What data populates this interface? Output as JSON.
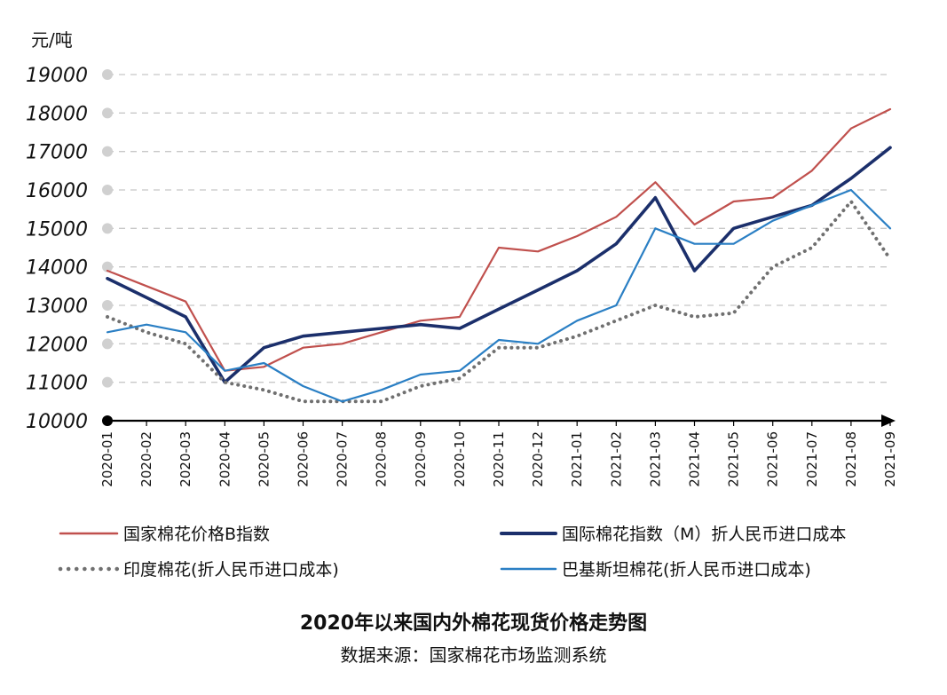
{
  "chart_data": {
    "type": "line",
    "title": "2020年以来国内外棉花现货价格走势图",
    "subtitle": "数据来源：国家棉花市场监测系统",
    "ylabel": "元/吨",
    "xlabel": "",
    "ylim": [
      10000,
      19000
    ],
    "yticks": [
      "10000",
      "11000",
      "12000",
      "13000",
      "14000",
      "15000",
      "16000",
      "17000",
      "18000",
      "19000"
    ],
    "categories": [
      "2020-01",
      "2020-02",
      "2020-03",
      "2020-04",
      "2020-05",
      "2020-06",
      "2020-07",
      "2020-08",
      "2020-09",
      "2020-10",
      "2020-11",
      "2020-12",
      "2021-01",
      "2021-02",
      "2021-03",
      "2021-04",
      "2021-05",
      "2021-06",
      "2021-07",
      "2021-08",
      "2021-09"
    ],
    "grid": "horizontal dashed",
    "legend_position": "bottom",
    "series": [
      {
        "name": "国家棉花价格B指数",
        "color": "#c0504d",
        "style": "solid",
        "values": [
          13900,
          13500,
          13100,
          11300,
          11400,
          11900,
          12000,
          12300,
          12600,
          12700,
          14500,
          14400,
          14800,
          15300,
          16200,
          15100,
          15700,
          15800,
          16500,
          17600,
          18100
        ]
      },
      {
        "name": "国际棉花指数（M）折人民币进口成本",
        "color": "#1b2f6b",
        "style": "thick",
        "values": [
          13700,
          13200,
          12700,
          11000,
          11900,
          12200,
          12300,
          12400,
          12500,
          12400,
          12900,
          13400,
          13900,
          14600,
          15800,
          13900,
          15000,
          15300,
          15600,
          16300,
          17100
        ]
      },
      {
        "name": "印度棉花(折人民币进口成本)",
        "color": "#707070",
        "style": "dotted",
        "values": [
          12700,
          12300,
          12000,
          11000,
          10800,
          10500,
          10500,
          10500,
          10900,
          11100,
          11900,
          11900,
          12200,
          12600,
          13000,
          12700,
          12800,
          14000,
          14500,
          15700,
          14200
        ]
      },
      {
        "name": "巴基斯坦棉花(折人民币进口成本)",
        "color": "#2a7fc4",
        "style": "solid",
        "values": [
          12300,
          12500,
          12300,
          11300,
          11500,
          10900,
          10500,
          10800,
          11200,
          11300,
          12100,
          12000,
          12600,
          13000,
          15000,
          14600,
          14600,
          15200,
          15600,
          16000,
          15000
        ]
      }
    ]
  },
  "title": "2020年以来国内外棉花现货价格走势图",
  "source": "数据来源：国家棉花市场监测系统"
}
